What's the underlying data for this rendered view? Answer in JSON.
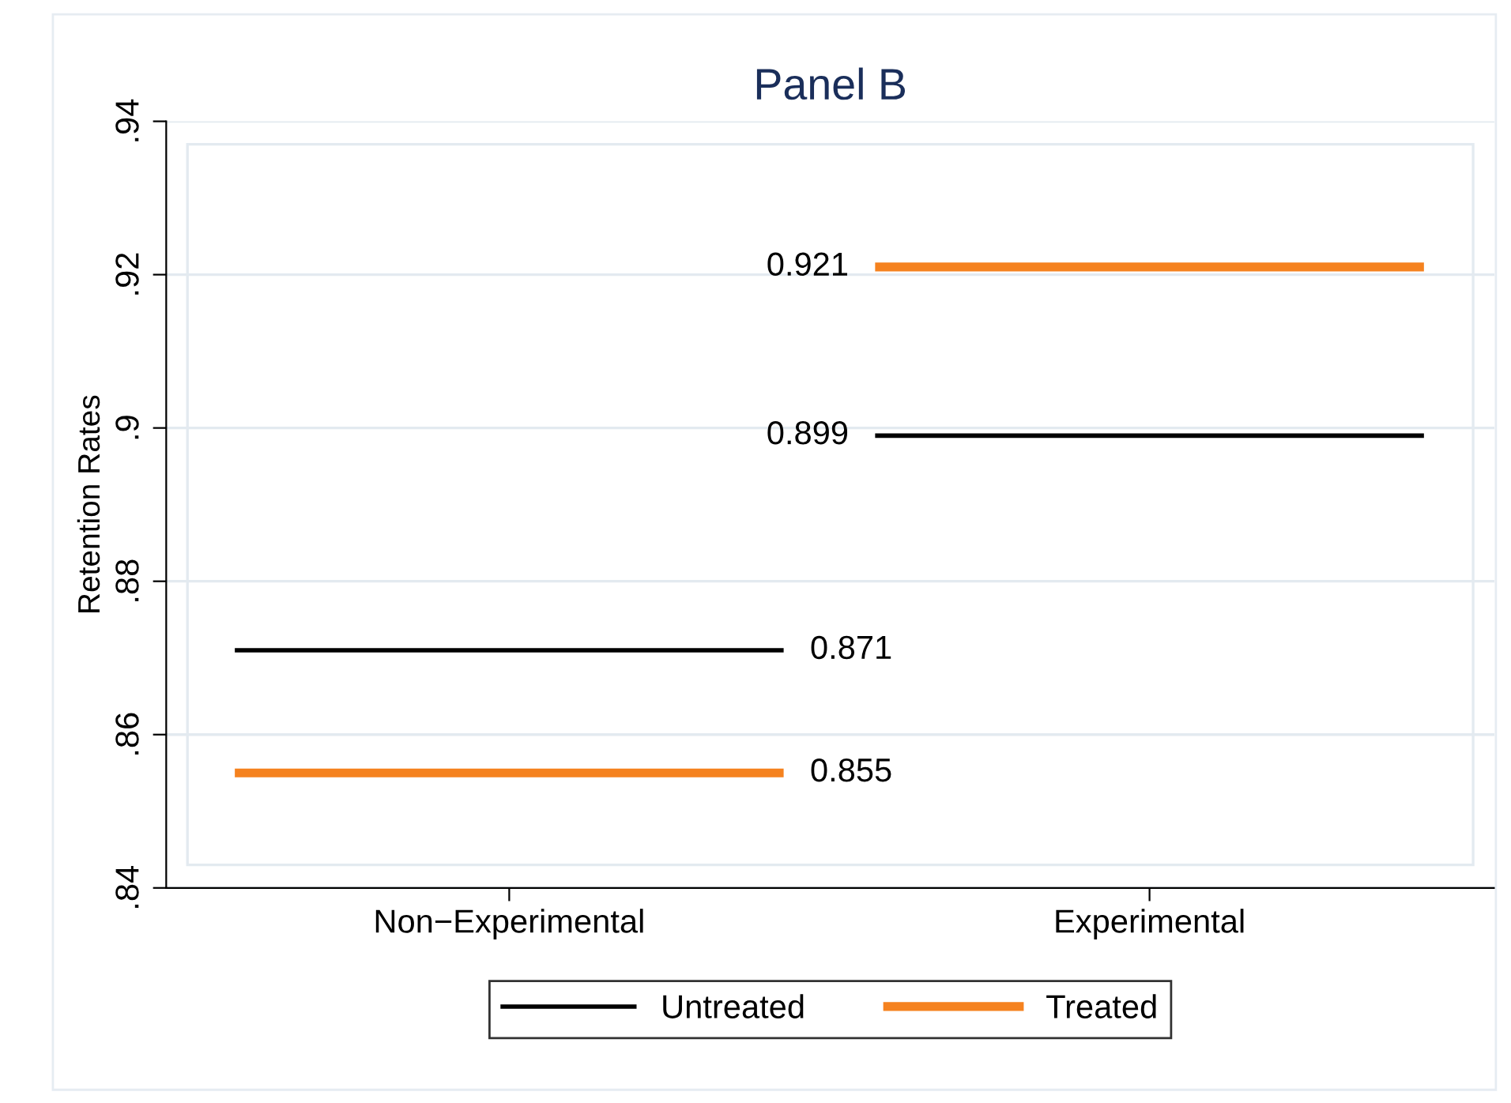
{
  "chart_data": {
    "type": "line",
    "title": "Panel B",
    "ylabel": "Retention Rates",
    "categories": [
      null,
      null,
      null,
      "Non−Experimental",
      null,
      null,
      null,
      null,
      null,
      null,
      "Experimental",
      null,
      null,
      null
    ],
    "series": [
      {
        "name": "Untreated",
        "color": "#000000",
        "values": [
          0.871,
          0.871,
          0.871,
          0.871,
          0.871,
          0.871,
          0.871,
          null,
          null,
          null,
          null,
          null,
          null,
          null
        ],
        "value_labels": [
          null,
          null,
          null,
          null,
          null,
          null,
          "0.871",
          null,
          null,
          null,
          null,
          null,
          null,
          null
        ]
      },
      {
        "color": "#000000",
        "values": [
          null,
          null,
          null,
          null,
          null,
          null,
          null,
          0.899,
          0.899,
          0.899,
          0.899,
          0.899,
          0.899,
          0.899
        ],
        "value_labels": [
          null,
          null,
          null,
          null,
          null,
          null,
          null,
          "0.899",
          null,
          null,
          null,
          null,
          null,
          null
        ]
      },
      {
        "name": "Treated",
        "color": "#f5821f",
        "values": [
          0.855,
          0.855,
          0.855,
          0.855,
          0.855,
          0.855,
          0.855,
          null,
          null,
          null,
          null,
          null,
          null,
          null
        ],
        "value_labels": [
          null,
          null,
          null,
          null,
          null,
          null,
          "0.855",
          null,
          null,
          null,
          null,
          null,
          null,
          null
        ]
      },
      {
        "color": "#f5821f",
        "values": [
          null,
          null,
          null,
          null,
          null,
          null,
          null,
          0.921,
          0.921,
          0.921,
          0.921,
          0.921,
          0.921,
          0.921
        ],
        "value_labels": [
          null,
          null,
          null,
          null,
          null,
          null,
          null,
          "0.921",
          null,
          null,
          null,
          null,
          null,
          null
        ]
      }
    ],
    "ylim": [
      0.84,
      0.94
    ],
    "yticks": [
      {
        "value": 0.84,
        "label": ".84"
      },
      {
        "value": 0.86,
        "label": ".86"
      },
      {
        "value": 0.88,
        "label": ".88"
      },
      {
        "value": 0.9,
        "label": ".9"
      },
      {
        "value": 0.92,
        "label": ".92"
      },
      {
        "value": 0.94,
        "label": ".94"
      }
    ],
    "grid": "y",
    "legend": "bottom"
  }
}
